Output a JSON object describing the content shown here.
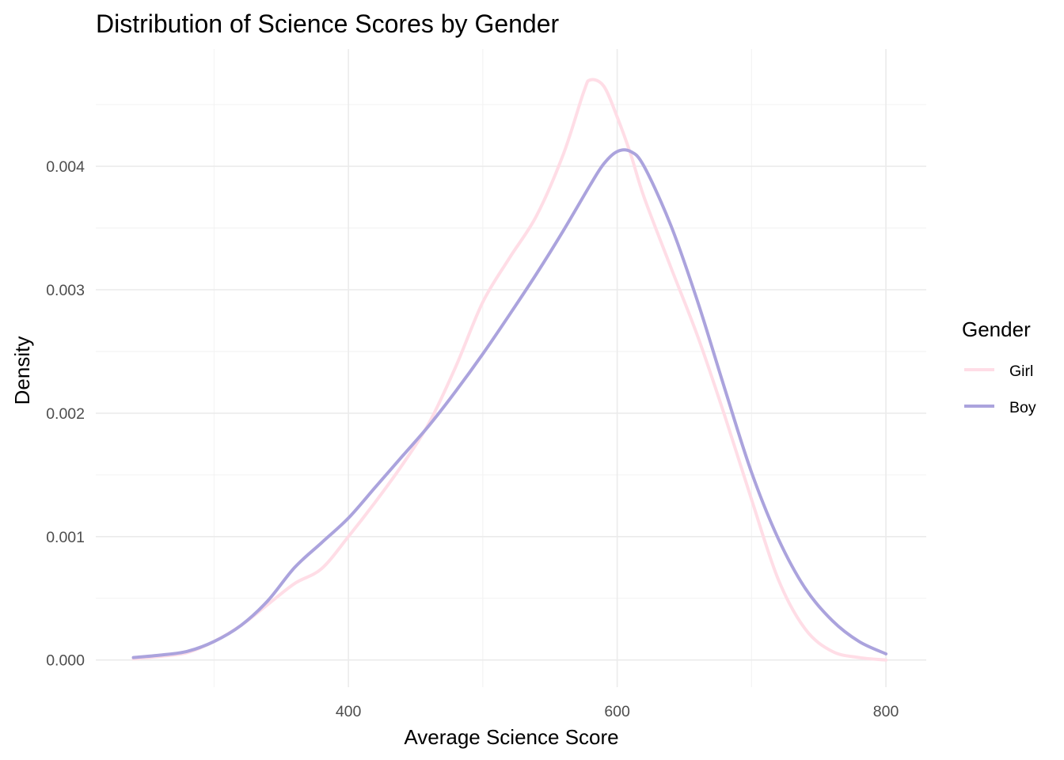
{
  "chart_data": {
    "type": "line",
    "title": "Distribution of Science Scores by Gender",
    "xlabel": "Average Science Score",
    "ylabel": "Density",
    "xlim": [
      212,
      830
    ],
    "ylim": [
      -0.00022,
      0.00495
    ],
    "x_ticks": [
      400,
      600,
      800
    ],
    "x_tick_labels": [
      "400",
      "600",
      "800"
    ],
    "y_ticks": [
      0,
      0.001,
      0.002,
      0.003,
      0.004
    ],
    "y_tick_labels": [
      "0.000",
      "0.001",
      "0.002",
      "0.003",
      "0.004"
    ],
    "grid": true,
    "legend": {
      "title": "Gender",
      "placement": "right"
    },
    "series": [
      {
        "name": "Girl",
        "color": "#FFDDE6",
        "points": [
          [
            240,
            1e-05
          ],
          [
            260,
            3e-05
          ],
          [
            280,
            6e-05
          ],
          [
            300,
            0.00015
          ],
          [
            320,
            0.00028
          ],
          [
            340,
            0.00045
          ],
          [
            360,
            0.00062
          ],
          [
            380,
            0.00074
          ],
          [
            400,
            0.001
          ],
          [
            420,
            0.00128
          ],
          [
            440,
            0.00158
          ],
          [
            460,
            0.00192
          ],
          [
            480,
            0.00238
          ],
          [
            500,
            0.0029
          ],
          [
            520,
            0.00326
          ],
          [
            540,
            0.0036
          ],
          [
            560,
            0.0041
          ],
          [
            575,
            0.0046
          ],
          [
            580,
            0.0047
          ],
          [
            590,
            0.00465
          ],
          [
            600,
            0.0044
          ],
          [
            610,
            0.0041
          ],
          [
            620,
            0.00375
          ],
          [
            640,
            0.00318
          ],
          [
            660,
            0.00262
          ],
          [
            680,
            0.00198
          ],
          [
            700,
            0.0013
          ],
          [
            720,
            0.00065
          ],
          [
            740,
            0.00025
          ],
          [
            760,
            7e-05
          ],
          [
            780,
            2e-05
          ],
          [
            800,
            0.0
          ]
        ]
      },
      {
        "name": "Boy",
        "color": "#ABA3DD",
        "points": [
          [
            240,
            2e-05
          ],
          [
            260,
            4e-05
          ],
          [
            280,
            7e-05
          ],
          [
            300,
            0.00015
          ],
          [
            320,
            0.00028
          ],
          [
            340,
            0.00048
          ],
          [
            360,
            0.00075
          ],
          [
            380,
            0.00095
          ],
          [
            400,
            0.00115
          ],
          [
            420,
            0.0014
          ],
          [
            440,
            0.00165
          ],
          [
            460,
            0.0019
          ],
          [
            480,
            0.00218
          ],
          [
            500,
            0.00248
          ],
          [
            520,
            0.0028
          ],
          [
            540,
            0.00313
          ],
          [
            560,
            0.00348
          ],
          [
            580,
            0.00385
          ],
          [
            590,
            0.00402
          ],
          [
            600,
            0.00412
          ],
          [
            610,
            0.00412
          ],
          [
            620,
            0.004
          ],
          [
            640,
            0.00352
          ],
          [
            660,
            0.0029
          ],
          [
            680,
            0.0022
          ],
          [
            700,
            0.00152
          ],
          [
            720,
            0.00098
          ],
          [
            740,
            0.00058
          ],
          [
            760,
            0.00032
          ],
          [
            780,
            0.00015
          ],
          [
            800,
            5e-05
          ]
        ]
      }
    ]
  }
}
